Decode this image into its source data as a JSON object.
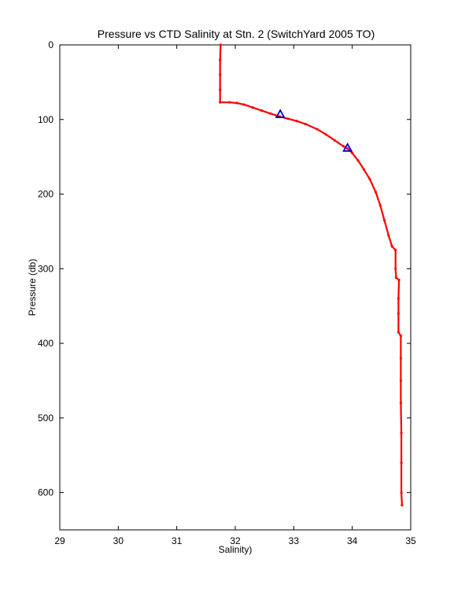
{
  "chart_data": {
    "type": "line",
    "title": "Pressure vs CTD Salinity at Stn. 2 (SwitchYard 2005 TO)",
    "xlabel": "Salinity)",
    "ylabel": "Pressure (db)",
    "xlim": [
      29,
      35
    ],
    "ylim": [
      0,
      650
    ],
    "y_reversed": true,
    "grid": false,
    "x_ticks": [
      29,
      30,
      31,
      32,
      33,
      34,
      35
    ],
    "y_ticks": [
      0,
      100,
      200,
      300,
      400,
      500,
      600
    ],
    "series": [
      {
        "color": "#ff0000",
        "marker": "dot",
        "points": [
          [
            31.75,
            0
          ],
          [
            31.74,
            20
          ],
          [
            31.74,
            40
          ],
          [
            31.74,
            60
          ],
          [
            31.74,
            77
          ],
          [
            31.9,
            77
          ],
          [
            32.03,
            78
          ],
          [
            32.15,
            80
          ],
          [
            32.3,
            84
          ],
          [
            32.45,
            88
          ],
          [
            32.6,
            92
          ],
          [
            32.76,
            96
          ],
          [
            32.9,
            99
          ],
          [
            33.05,
            102
          ],
          [
            33.2,
            106
          ],
          [
            33.4,
            113
          ],
          [
            33.55,
            120
          ],
          [
            33.7,
            128
          ],
          [
            33.85,
            136
          ],
          [
            33.92,
            139
          ],
          [
            34.0,
            145
          ],
          [
            34.1,
            155
          ],
          [
            34.2,
            167
          ],
          [
            34.3,
            180
          ],
          [
            34.4,
            197
          ],
          [
            34.48,
            215
          ],
          [
            34.55,
            235
          ],
          [
            34.62,
            255
          ],
          [
            34.68,
            270
          ],
          [
            34.74,
            275
          ],
          [
            34.74,
            300
          ],
          [
            34.75,
            312
          ],
          [
            34.8,
            315
          ],
          [
            34.79,
            340
          ],
          [
            34.79,
            360
          ],
          [
            34.79,
            385
          ],
          [
            34.83,
            390
          ],
          [
            34.83,
            420
          ],
          [
            34.83,
            450
          ],
          [
            34.83,
            480
          ],
          [
            34.84,
            520
          ],
          [
            34.84,
            560
          ],
          [
            34.84,
            600
          ],
          [
            34.85,
            617
          ]
        ]
      },
      {
        "color": "#0000cc",
        "marker": "triangle",
        "points": [
          [
            32.77,
            93
          ],
          [
            33.92,
            138
          ]
        ]
      }
    ]
  }
}
